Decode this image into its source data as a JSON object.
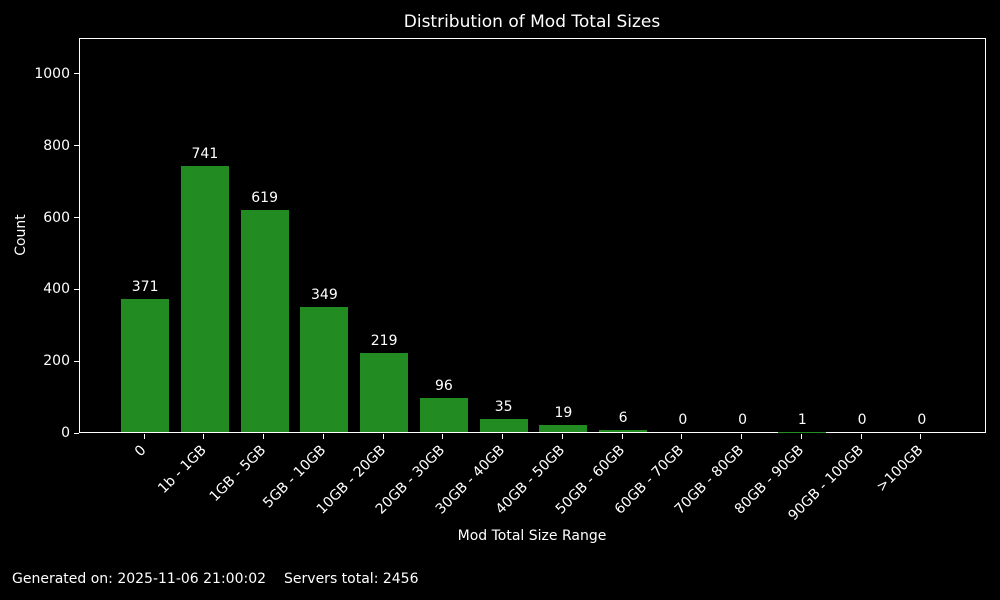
{
  "figure": {
    "footer": {
      "generated": "Generated on: 2025-11-06 21:00:02",
      "servers": "Servers total: 2456"
    }
  },
  "chart_data": {
    "type": "bar",
    "title": "Distribution of Mod Total Sizes",
    "xlabel": "Mod Total Size Range",
    "ylabel": "Count",
    "categories": [
      "0",
      "1b - 1GB",
      "1GB - 5GB",
      "5GB - 10GB",
      "10GB - 20GB",
      "20GB - 30GB",
      "30GB - 40GB",
      "40GB - 50GB",
      "50GB - 60GB",
      "60GB - 70GB",
      "70GB - 80GB",
      "80GB - 90GB",
      "90GB - 100GB",
      ">100GB"
    ],
    "values": [
      371,
      741,
      619,
      349,
      219,
      96,
      35,
      19,
      6,
      0,
      0,
      1,
      0,
      0
    ],
    "yticks": [
      0,
      200,
      400,
      600,
      800,
      1000
    ],
    "ylim": [
      0,
      1100
    ],
    "x_tick_rotation": 45,
    "grid": false,
    "legend": false,
    "colors": {
      "bar": "#228B22",
      "background": "#000000",
      "text": "#ffffff",
      "axis": "#ffffff"
    }
  }
}
